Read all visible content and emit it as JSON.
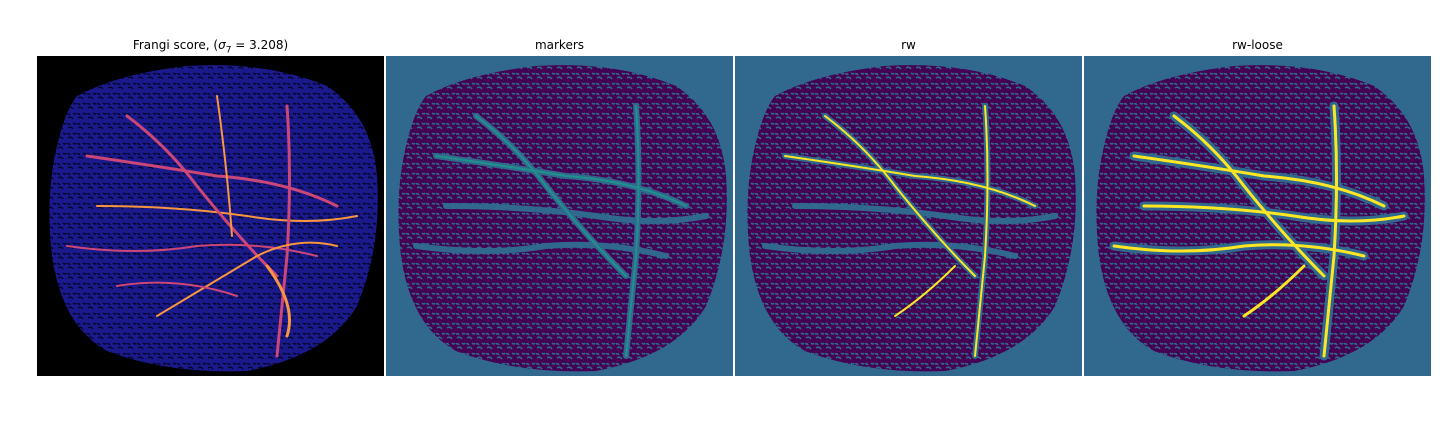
{
  "panels": [
    {
      "title_prefix": "Frangi score, (",
      "title_symbol": "σ",
      "title_subscript": "7",
      "title_suffix": " = 3.208)",
      "colormap": "plasma-on-black"
    },
    {
      "title": "markers",
      "colormap": "viridis-3level"
    },
    {
      "title": "rw",
      "colormap": "viridis-3level"
    },
    {
      "title": "rw-loose",
      "colormap": "viridis-3level"
    }
  ],
  "colors": {
    "background_dark": "#000000",
    "teal_background": "#31688e",
    "dark_purple": "#440154",
    "vessel_teal": "#21918c",
    "vessel_yellow": "#fde725",
    "frangi_blue": "#1a1a8c",
    "frangi_magenta": "#cc4778",
    "frangi_orange": "#f89540"
  }
}
